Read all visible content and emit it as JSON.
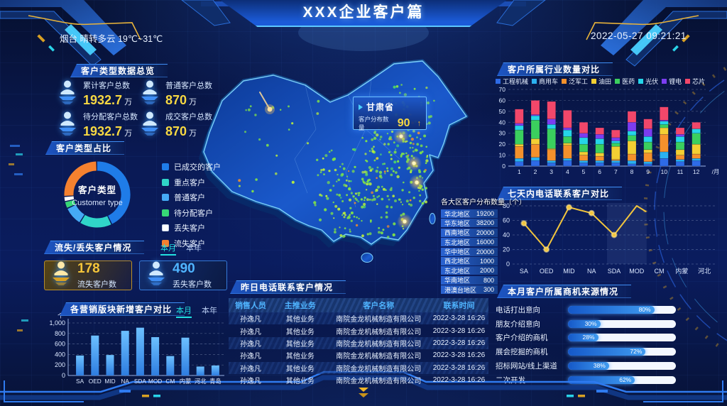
{
  "header": {
    "title": "XXX企业客户篇",
    "weather": "烟台 晴转多云 19℃~31℃",
    "datetime": "2022-05-27 09:21:21"
  },
  "panels": {
    "overview": {
      "title": "客户类型数据总览",
      "stats": [
        {
          "label": "累计客户总数",
          "value": "1932.7",
          "unit": "万"
        },
        {
          "label": "普通客户总数",
          "value": "870",
          "unit": "万"
        },
        {
          "label": "待分配客户总数",
          "value": "1932.7",
          "unit": "万"
        },
        {
          "label": "成交客户总数",
          "value": "870",
          "unit": "万"
        }
      ]
    },
    "customer_type": {
      "title": "客户类型占比",
      "center_title": "客户类型",
      "center_subtitle": "Customer type"
    },
    "churn": {
      "title": "流失/丢失客户情况",
      "tab_month": "本月",
      "tab_year": "本年",
      "items": [
        {
          "label": "流失客户数",
          "value": "178"
        },
        {
          "label": "丢失客户数",
          "value": "490"
        }
      ]
    },
    "new_customers": {
      "title": "各营销版块新增客户对比",
      "tab_month": "本月",
      "tab_year": "本年"
    },
    "industry": {
      "title": "客户所属行业数量对比"
    },
    "calls_week": {
      "title": "七天内电话联系客户对比"
    },
    "opportunity": {
      "title": "本月客户所属商机来源情况"
    },
    "call_table": {
      "title": "昨日电话联系客户情况",
      "headers": [
        "销售人员",
        "主推业务",
        "客户名称",
        "联系时间"
      ],
      "rows": [
        [
          "孙逸凡",
          "其他业务",
          "南院金龙机械制造有限公司",
          "2022-3-28 16:26"
        ],
        [
          "孙逸凡",
          "其他业务",
          "南院金龙机械制造有限公司",
          "2022-3-28 16:26"
        ],
        [
          "孙逸凡",
          "其他业务",
          "南院金龙机械制造有限公司",
          "2022-3-28 16:26"
        ],
        [
          "孙逸凡",
          "其他业务",
          "南院金龙机械制造有限公司",
          "2022-3-28 16:26"
        ],
        [
          "孙逸凡",
          "其他业务",
          "南院金龙机械制造有限公司",
          "2022-3-28 16:26"
        ],
        [
          "孙逸凡",
          "其他业务",
          "南院金龙机械制造有限公司",
          "2022-3-28 16:26"
        ]
      ]
    },
    "map": {
      "tooltip": {
        "province": "甘肃省",
        "label": "客户分布数量",
        "value": "90"
      },
      "region_table": {
        "title": "各大区客户分布数量（个）",
        "rows": [
          [
            "华北地区",
            "19200"
          ],
          [
            "华东地区",
            "38200"
          ],
          [
            "西南地区",
            "20000"
          ],
          [
            "东北地区",
            "16000"
          ],
          [
            "华中地区",
            "20000"
          ],
          [
            "西北地区",
            "1000"
          ],
          [
            "东北地区",
            "2000"
          ],
          [
            "华南地区",
            "800"
          ],
          [
            "港澳台地区",
            "300"
          ]
        ]
      }
    }
  },
  "chart_data": [
    {
      "type": "pie",
      "title": "客户类型占比",
      "labels": [
        "已成交的客户",
        "重点客户",
        "普通客户",
        "待分配客户",
        "丢失客户",
        "流失客户"
      ],
      "values": [
        44,
        16,
        9,
        3,
        2,
        26
      ],
      "colors": [
        "#1f7ce8",
        "#30d5c8",
        "#45aaf5",
        "#37d876",
        "#ffffff",
        "#f5812f"
      ],
      "center": [
        "客户类型",
        "Customer type"
      ],
      "legend_position": "right"
    },
    {
      "type": "bar",
      "title": "各营销版块新增客户对比",
      "categories": [
        "SA",
        "OED",
        "MID",
        "NA",
        "SDA",
        "MOD",
        "CM",
        "内蒙",
        "河北",
        "青岛"
      ],
      "values": [
        380,
        760,
        390,
        850,
        910,
        730,
        370,
        720,
        170,
        190
      ],
      "ylabel": "个",
      "ylim": [
        0,
        1000
      ],
      "yticks": [
        {
          "v": 0,
          "label": "0"
        },
        {
          "v": 200,
          "label": "200"
        },
        {
          "v": 400,
          "label": "400"
        },
        {
          "v": 600,
          "label": "600"
        },
        {
          "v": 800,
          "label": "800"
        },
        {
          "v": 1000,
          "label": "1,000"
        }
      ],
      "bar_color": "#3f8fe0"
    },
    {
      "type": "bar",
      "subtype": "stacked",
      "title": "客户所属行业数量对比",
      "categories": [
        "1",
        "2",
        "3",
        "4",
        "5",
        "6",
        "7",
        "8",
        "9",
        "10",
        "11",
        "12"
      ],
      "xlabel": "/月",
      "ylim": [
        0,
        70
      ],
      "series": [
        {
          "name": "工程机械",
          "color": "#2e6be6",
          "values": [
            4,
            5,
            3,
            5,
            3,
            3,
            3,
            2,
            2,
            7,
            4,
            5
          ]
        },
        {
          "name": "商用车",
          "color": "#2bb1f0",
          "values": [
            3,
            3,
            2,
            2,
            2,
            2,
            2,
            3,
            2,
            6,
            2,
            2
          ]
        },
        {
          "name": "泛军工",
          "color": "#f5912c",
          "values": [
            11,
            12,
            10,
            12,
            5,
            4,
            1,
            6,
            8,
            16,
            4,
            4
          ]
        },
        {
          "name": "油田",
          "color": "#f3cf33",
          "values": [
            2,
            5,
            1,
            2,
            3,
            3,
            12,
            12,
            3,
            6,
            5,
            9
          ]
        },
        {
          "name": "医药",
          "color": "#3bcf5e",
          "values": [
            13,
            17,
            18,
            6,
            7,
            8,
            3,
            5,
            7,
            3,
            7,
            10
          ]
        },
        {
          "name": "光伏",
          "color": "#25d5e8",
          "values": [
            4,
            4,
            4,
            6,
            6,
            5,
            2,
            4,
            5,
            3,
            5,
            4
          ]
        },
        {
          "name": "锂电",
          "color": "#7b3df0",
          "values": [
            2,
            1,
            5,
            2,
            4,
            4,
            3,
            8,
            7,
            1,
            2,
            0
          ]
        },
        {
          "name": "芯片",
          "color": "#f2476a",
          "values": [
            13,
            13,
            16,
            16,
            10,
            6,
            7,
            10,
            9,
            12,
            6,
            6
          ]
        }
      ]
    },
    {
      "type": "line",
      "title": "七天内电话联系客户对比",
      "categories": [
        "SA",
        "OED",
        "MID",
        "NA",
        "SDA",
        "MOD",
        "CM",
        "内蒙",
        "河北"
      ],
      "values": [
        56,
        20,
        78,
        70,
        40,
        80
      ],
      "partial_end_value": 72,
      "ylim": [
        0,
        80
      ],
      "line_color": "#f2c53d"
    },
    {
      "type": "bar",
      "subtype": "horizontal-percent",
      "title": "本月客户所属商机来源情况",
      "categories": [
        "电话打出意向",
        "朋友介绍意向",
        "客户介绍的商机",
        "展会挖掘的商机",
        "招标网站/线上渠道",
        "二次开发"
      ],
      "values": [
        80,
        30,
        28,
        72,
        38,
        62
      ],
      "unit": "%"
    }
  ]
}
